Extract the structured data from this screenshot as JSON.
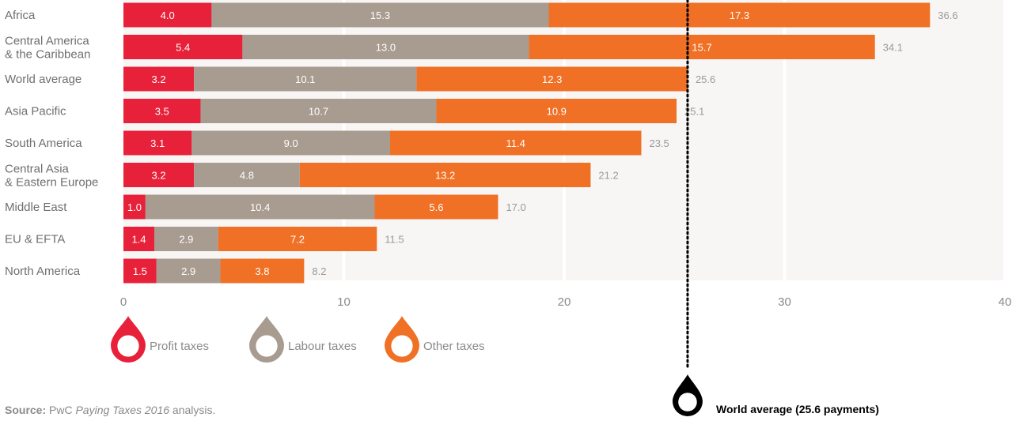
{
  "chart_data": {
    "type": "bar",
    "orientation": "horizontal",
    "stacked": true,
    "categories": [
      [
        "Africa"
      ],
      [
        "Central America",
        "& the Caribbean"
      ],
      [
        "World average"
      ],
      [
        "Asia Pacific"
      ],
      [
        "South America"
      ],
      [
        "Central Asia",
        "& Eastern Europe"
      ],
      [
        "Middle East"
      ],
      [
        "EU & EFTA"
      ],
      [
        "North America"
      ]
    ],
    "series": [
      {
        "name": "Profit taxes",
        "color": "#e8213a",
        "values": [
          4.0,
          5.4,
          3.2,
          3.5,
          3.1,
          3.2,
          1.0,
          1.4,
          1.5
        ]
      },
      {
        "name": "Labour taxes",
        "color": "#a89b90",
        "values": [
          15.3,
          13.0,
          10.1,
          10.7,
          9.0,
          4.8,
          10.4,
          2.9,
          2.9
        ]
      },
      {
        "name": "Other taxes",
        "color": "#f07026",
        "values": [
          17.3,
          15.7,
          12.3,
          10.9,
          11.4,
          13.2,
          5.6,
          7.2,
          3.8
        ]
      }
    ],
    "totals": [
      "36.6",
      "34.1",
      "25.6",
      "25.1",
      "23.5",
      "21.2",
      "17.0",
      "11.5",
      "8.2"
    ],
    "xlim": [
      0,
      40
    ],
    "xticks": [
      0,
      10,
      20,
      30,
      40
    ],
    "reference_line": {
      "value": 25.6,
      "label": "World average (25.6 payments)",
      "color": "#000000"
    },
    "grid": true,
    "legend_position": "bottom-left"
  },
  "source": {
    "label": "Source:",
    "text_before": " PwC ",
    "title": "Paying Taxes 2016",
    "text_after": " analysis."
  }
}
